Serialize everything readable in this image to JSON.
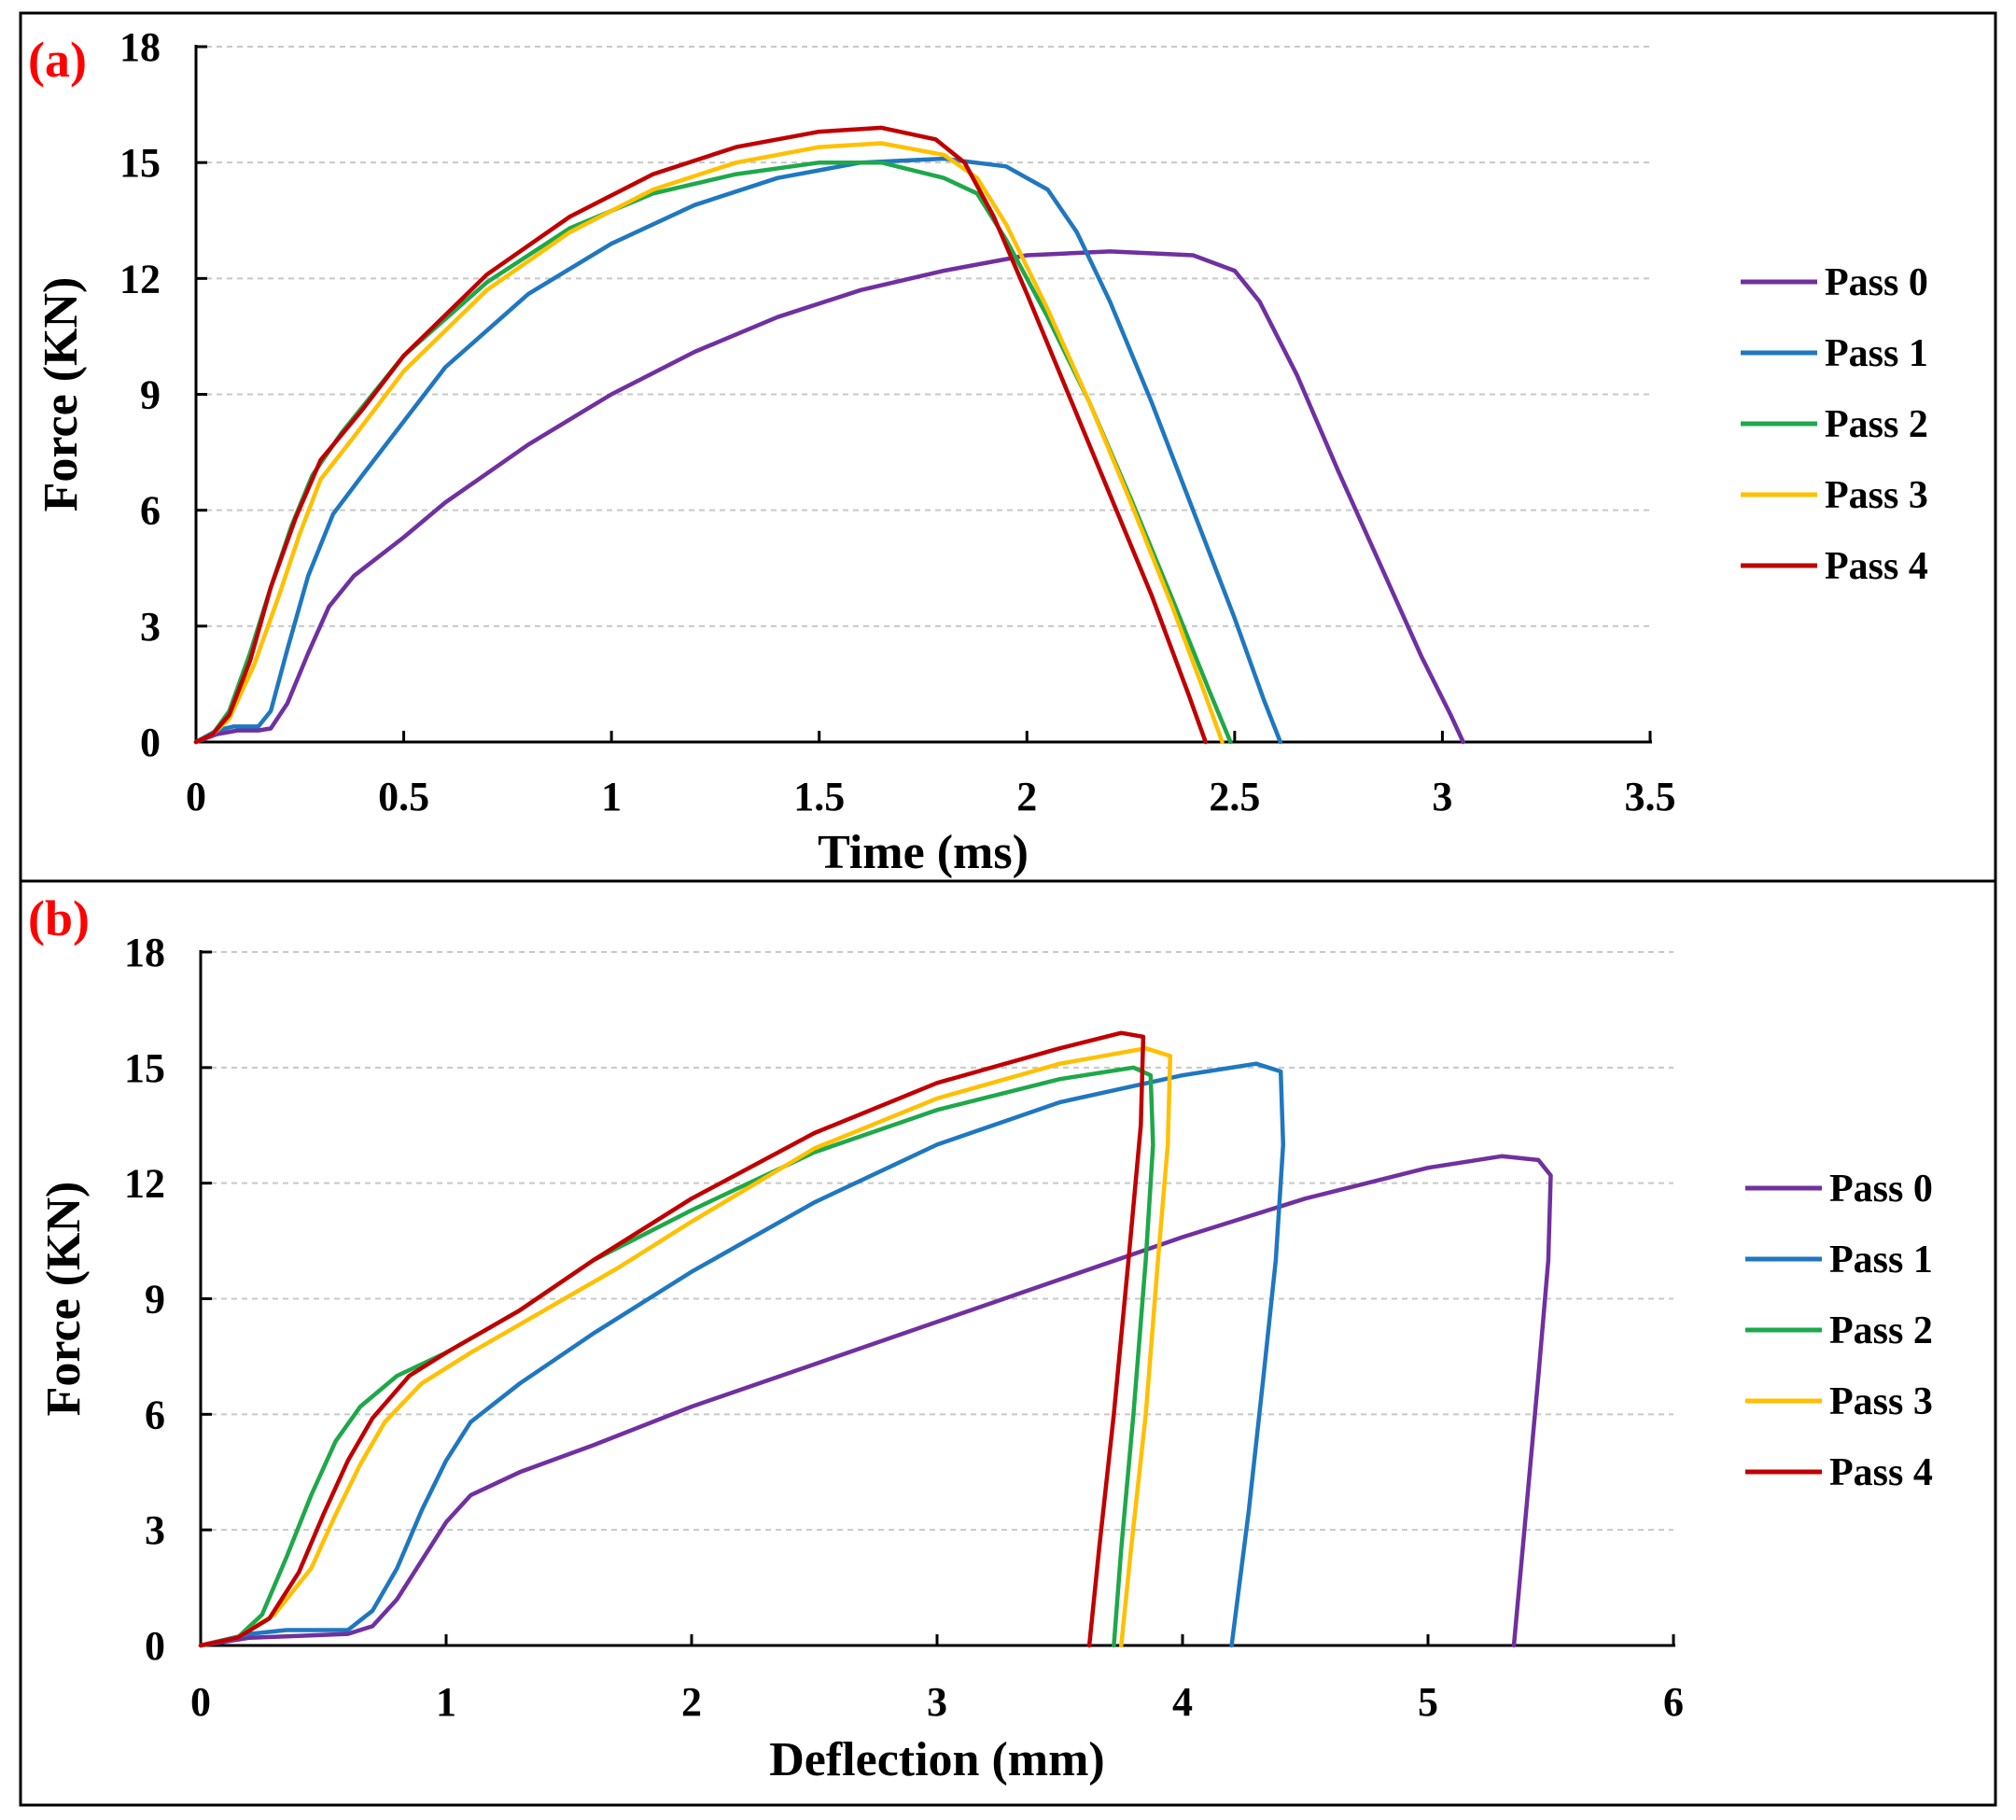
{
  "chart_data": [
    {
      "type": "line",
      "panel_label": "(a)",
      "xlabel": "Time (ms)",
      "ylabel": "Force (KN)",
      "xlim": [
        0,
        3.5
      ],
      "ylim": [
        0,
        18
      ],
      "xticks": [
        "0",
        "0.5",
        "1",
        "1.5",
        "2",
        "2.5",
        "3",
        "3.5"
      ],
      "yticks": [
        "0",
        "3",
        "6",
        "9",
        "12",
        "15",
        "18"
      ],
      "grid": "horizontal dashed",
      "legend": "right",
      "series": [
        {
          "name": "Pass 0",
          "color": "#7030a0",
          "points": [
            [
              0,
              0
            ],
            [
              0.05,
              0.2
            ],
            [
              0.1,
              0.3
            ],
            [
              0.15,
              0.3
            ],
            [
              0.18,
              0.35
            ],
            [
              0.22,
              1.0
            ],
            [
              0.27,
              2.3
            ],
            [
              0.32,
              3.5
            ],
            [
              0.38,
              4.3
            ],
            [
              0.5,
              5.3
            ],
            [
              0.6,
              6.2
            ],
            [
              0.8,
              7.7
            ],
            [
              1.0,
              9.0
            ],
            [
              1.2,
              10.1
            ],
            [
              1.4,
              11.0
            ],
            [
              1.6,
              11.7
            ],
            [
              1.8,
              12.2
            ],
            [
              2.0,
              12.6
            ],
            [
              2.2,
              12.7
            ],
            [
              2.4,
              12.6
            ],
            [
              2.5,
              12.2
            ],
            [
              2.56,
              11.4
            ],
            [
              2.65,
              9.5
            ],
            [
              2.75,
              7.0
            ],
            [
              2.85,
              4.6
            ],
            [
              2.95,
              2.2
            ],
            [
              3.02,
              0.7
            ],
            [
              3.05,
              0
            ]
          ]
        },
        {
          "name": "Pass 1",
          "color": "#1f77c0",
          "points": [
            [
              0,
              0
            ],
            [
              0.05,
              0.3
            ],
            [
              0.09,
              0.4
            ],
            [
              0.15,
              0.4
            ],
            [
              0.18,
              0.8
            ],
            [
              0.22,
              2.4
            ],
            [
              0.27,
              4.3
            ],
            [
              0.33,
              5.9
            ],
            [
              0.4,
              6.9
            ],
            [
              0.5,
              8.3
            ],
            [
              0.6,
              9.7
            ],
            [
              0.8,
              11.6
            ],
            [
              1.0,
              12.9
            ],
            [
              1.2,
              13.9
            ],
            [
              1.4,
              14.6
            ],
            [
              1.6,
              15.0
            ],
            [
              1.8,
              15.1
            ],
            [
              1.95,
              14.9
            ],
            [
              2.05,
              14.3
            ],
            [
              2.12,
              13.2
            ],
            [
              2.2,
              11.4
            ],
            [
              2.3,
              8.8
            ],
            [
              2.4,
              6.0
            ],
            [
              2.5,
              3.2
            ],
            [
              2.57,
              1.1
            ],
            [
              2.61,
              0
            ]
          ]
        },
        {
          "name": "Pass 2",
          "color": "#1ea84a",
          "points": [
            [
              0,
              0
            ],
            [
              0.04,
              0.2
            ],
            [
              0.08,
              0.8
            ],
            [
              0.13,
              2.3
            ],
            [
              0.18,
              4.0
            ],
            [
              0.23,
              5.6
            ],
            [
              0.28,
              6.9
            ],
            [
              0.35,
              8.0
            ],
            [
              0.5,
              10.0
            ],
            [
              0.7,
              11.9
            ],
            [
              0.9,
              13.3
            ],
            [
              1.1,
              14.2
            ],
            [
              1.3,
              14.7
            ],
            [
              1.5,
              15.0
            ],
            [
              1.65,
              15.0
            ],
            [
              1.8,
              14.6
            ],
            [
              1.88,
              14.2
            ],
            [
              1.95,
              13.0
            ],
            [
              2.05,
              11.0
            ],
            [
              2.15,
              8.8
            ],
            [
              2.25,
              6.3
            ],
            [
              2.35,
              3.7
            ],
            [
              2.44,
              1.3
            ],
            [
              2.49,
              0
            ]
          ]
        },
        {
          "name": "Pass 3",
          "color": "#ffc000",
          "points": [
            [
              0,
              0
            ],
            [
              0.04,
              0.2
            ],
            [
              0.08,
              0.6
            ],
            [
              0.14,
              2.0
            ],
            [
              0.2,
              3.8
            ],
            [
              0.25,
              5.4
            ],
            [
              0.3,
              6.8
            ],
            [
              0.38,
              7.9
            ],
            [
              0.5,
              9.6
            ],
            [
              0.7,
              11.7
            ],
            [
              0.9,
              13.2
            ],
            [
              1.1,
              14.3
            ],
            [
              1.3,
              15.0
            ],
            [
              1.5,
              15.4
            ],
            [
              1.65,
              15.5
            ],
            [
              1.8,
              15.2
            ],
            [
              1.88,
              14.6
            ],
            [
              1.95,
              13.4
            ],
            [
              2.05,
              11.2
            ],
            [
              2.15,
              8.8
            ],
            [
              2.25,
              6.2
            ],
            [
              2.35,
              3.5
            ],
            [
              2.43,
              1.2
            ],
            [
              2.47,
              0
            ]
          ]
        },
        {
          "name": "Pass 4",
          "color": "#c00000",
          "points": [
            [
              0,
              0
            ],
            [
              0.04,
              0.2
            ],
            [
              0.08,
              0.7
            ],
            [
              0.13,
              2.1
            ],
            [
              0.18,
              4.0
            ],
            [
              0.24,
              5.8
            ],
            [
              0.3,
              7.3
            ],
            [
              0.4,
              8.6
            ],
            [
              0.5,
              10.0
            ],
            [
              0.7,
              12.1
            ],
            [
              0.9,
              13.6
            ],
            [
              1.1,
              14.7
            ],
            [
              1.3,
              15.4
            ],
            [
              1.5,
              15.8
            ],
            [
              1.65,
              15.9
            ],
            [
              1.78,
              15.6
            ],
            [
              1.85,
              15.0
            ],
            [
              1.92,
              13.6
            ],
            [
              2.0,
              11.6
            ],
            [
              2.1,
              9.0
            ],
            [
              2.2,
              6.4
            ],
            [
              2.3,
              3.8
            ],
            [
              2.39,
              1.2
            ],
            [
              2.43,
              0
            ]
          ]
        }
      ]
    },
    {
      "type": "line",
      "panel_label": "(b)",
      "xlabel": "Deflection (mm)",
      "ylabel": "Force (KN)",
      "xlim": [
        0,
        6
      ],
      "ylim": [
        0,
        18
      ],
      "xticks": [
        "0",
        "1",
        "2",
        "3",
        "4",
        "5",
        "6"
      ],
      "yticks": [
        "0",
        "3",
        "6",
        "9",
        "12",
        "15",
        "18"
      ],
      "grid": "horizontal dashed",
      "legend": "right",
      "series": [
        {
          "name": "Pass 0",
          "color": "#7030a0",
          "points": [
            [
              0,
              0
            ],
            [
              0.2,
              0.2
            ],
            [
              0.4,
              0.25
            ],
            [
              0.6,
              0.3
            ],
            [
              0.7,
              0.5
            ],
            [
              0.8,
              1.2
            ],
            [
              0.9,
              2.2
            ],
            [
              1.0,
              3.2
            ],
            [
              1.1,
              3.9
            ],
            [
              1.3,
              4.5
            ],
            [
              1.6,
              5.2
            ],
            [
              2.0,
              6.2
            ],
            [
              2.5,
              7.3
            ],
            [
              3.0,
              8.4
            ],
            [
              3.5,
              9.5
            ],
            [
              4.0,
              10.6
            ],
            [
              4.5,
              11.6
            ],
            [
              5.0,
              12.4
            ],
            [
              5.3,
              12.7
            ],
            [
              5.45,
              12.6
            ],
            [
              5.5,
              12.2
            ],
            [
              5.49,
              10.0
            ],
            [
              5.45,
              7.0
            ],
            [
              5.4,
              3.5
            ],
            [
              5.35,
              0
            ]
          ]
        },
        {
          "name": "Pass 1",
          "color": "#1f77c0",
          "points": [
            [
              0,
              0
            ],
            [
              0.2,
              0.3
            ],
            [
              0.35,
              0.4
            ],
            [
              0.6,
              0.4
            ],
            [
              0.7,
              0.9
            ],
            [
              0.8,
              2.0
            ],
            [
              0.9,
              3.5
            ],
            [
              1.0,
              4.8
            ],
            [
              1.1,
              5.8
            ],
            [
              1.3,
              6.8
            ],
            [
              1.6,
              8.1
            ],
            [
              2.0,
              9.7
            ],
            [
              2.5,
              11.5
            ],
            [
              3.0,
              13.0
            ],
            [
              3.5,
              14.1
            ],
            [
              4.0,
              14.8
            ],
            [
              4.3,
              15.1
            ],
            [
              4.4,
              14.9
            ],
            [
              4.41,
              13.0
            ],
            [
              4.38,
              10.0
            ],
            [
              4.33,
              7.0
            ],
            [
              4.27,
              3.5
            ],
            [
              4.2,
              0
            ]
          ]
        },
        {
          "name": "Pass 2",
          "color": "#1ea84a",
          "points": [
            [
              0,
              0
            ],
            [
              0.15,
              0.2
            ],
            [
              0.25,
              0.8
            ],
            [
              0.35,
              2.3
            ],
            [
              0.45,
              3.9
            ],
            [
              0.55,
              5.3
            ],
            [
              0.65,
              6.2
            ],
            [
              0.8,
              7.0
            ],
            [
              1.0,
              7.6
            ],
            [
              1.3,
              8.7
            ],
            [
              1.6,
              10.0
            ],
            [
              2.0,
              11.3
            ],
            [
              2.5,
              12.8
            ],
            [
              3.0,
              13.9
            ],
            [
              3.5,
              14.7
            ],
            [
              3.8,
              15.0
            ],
            [
              3.87,
              14.8
            ],
            [
              3.88,
              13.0
            ],
            [
              3.85,
              10.0
            ],
            [
              3.8,
              6.0
            ],
            [
              3.75,
              2.5
            ],
            [
              3.72,
              0
            ]
          ]
        },
        {
          "name": "Pass 3",
          "color": "#ffc000",
          "points": [
            [
              0,
              0
            ],
            [
              0.15,
              0.2
            ],
            [
              0.3,
              0.8
            ],
            [
              0.45,
              2.0
            ],
            [
              0.55,
              3.4
            ],
            [
              0.65,
              4.7
            ],
            [
              0.75,
              5.8
            ],
            [
              0.9,
              6.8
            ],
            [
              1.1,
              7.6
            ],
            [
              1.4,
              8.7
            ],
            [
              1.7,
              9.8
            ],
            [
              2.0,
              11.0
            ],
            [
              2.5,
              12.9
            ],
            [
              3.0,
              14.2
            ],
            [
              3.5,
              15.1
            ],
            [
              3.85,
              15.5
            ],
            [
              3.95,
              15.3
            ],
            [
              3.94,
              13.0
            ],
            [
              3.9,
              10.0
            ],
            [
              3.85,
              6.0
            ],
            [
              3.79,
              2.5
            ],
            [
              3.75,
              0
            ]
          ]
        },
        {
          "name": "Pass 4",
          "color": "#c00000",
          "points": [
            [
              0,
              0
            ],
            [
              0.15,
              0.2
            ],
            [
              0.28,
              0.7
            ],
            [
              0.4,
              1.9
            ],
            [
              0.5,
              3.4
            ],
            [
              0.6,
              4.8
            ],
            [
              0.7,
              5.9
            ],
            [
              0.85,
              7.0
            ],
            [
              1.0,
              7.6
            ],
            [
              1.3,
              8.7
            ],
            [
              1.6,
              10.0
            ],
            [
              2.0,
              11.6
            ],
            [
              2.5,
              13.3
            ],
            [
              3.0,
              14.6
            ],
            [
              3.5,
              15.5
            ],
            [
              3.75,
              15.9
            ],
            [
              3.84,
              15.8
            ],
            [
              3.83,
              13.5
            ],
            [
              3.78,
              10.0
            ],
            [
              3.72,
              6.0
            ],
            [
              3.66,
              2.5
            ],
            [
              3.62,
              0
            ]
          ]
        }
      ]
    }
  ]
}
